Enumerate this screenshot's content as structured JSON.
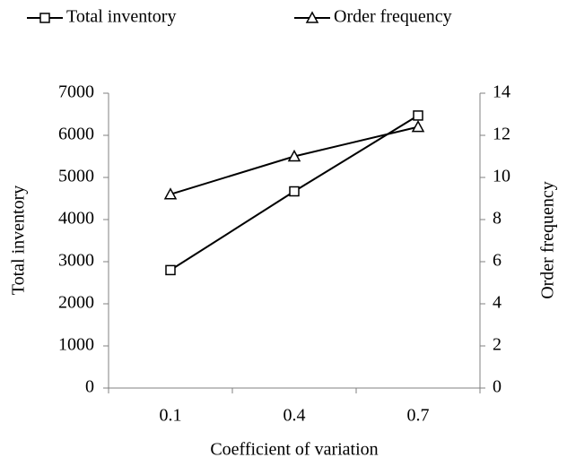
{
  "chart_data": {
    "type": "line",
    "x_label": "Coefficient of variation",
    "y_label": "Total inventory",
    "y2_label": "Order frequency",
    "categories": [
      "0.1",
      "0.4",
      "0.7"
    ],
    "series": [
      {
        "name": "Total inventory",
        "color": "#000000",
        "marker": "square",
        "values": [
          2800,
          4670,
          6470
        ]
      },
      {
        "name": "Order frequency",
        "color": "#000000",
        "marker": "triangle",
        "axis": "y2",
        "values": [
          9.2,
          11.0,
          12.4
        ]
      }
    ],
    "ylim": [
      0,
      7000
    ],
    "yticks": [
      0,
      1000,
      2000,
      3000,
      4000,
      5000,
      6000,
      7000
    ],
    "y2lim": [
      0,
      14
    ],
    "y2ticks": [
      0,
      2,
      4,
      6,
      8,
      10,
      12,
      14
    ],
    "grid": false,
    "legend": "top"
  }
}
